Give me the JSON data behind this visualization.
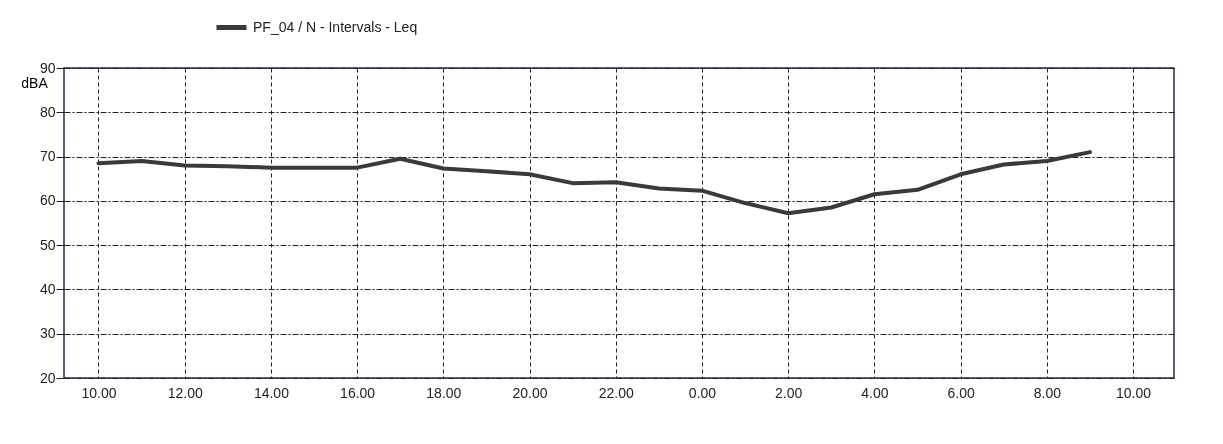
{
  "chart_data": {
    "type": "line",
    "ylabel": "dBA",
    "x": [
      "2000-01-01T10:00",
      "2000-01-01T11:00",
      "2000-01-01T12:00",
      "2000-01-01T13:00",
      "2000-01-01T14:00",
      "2000-01-01T15:00",
      "2000-01-01T16:00",
      "2000-01-01T17:00",
      "2000-01-01T18:00",
      "2000-01-01T19:00",
      "2000-01-01T20:00",
      "2000-01-01T21:00",
      "2000-01-01T22:00",
      "2000-01-01T23:00",
      "2000-01-02T00:00",
      "2000-01-02T01:00",
      "2000-01-02T02:00",
      "2000-01-02T03:00",
      "2000-01-02T04:00",
      "2000-01-02T05:00",
      "2000-01-02T06:00",
      "2000-01-02T07:00",
      "2000-01-02T08:00",
      "2000-01-02T09:00"
    ],
    "series": [
      {
        "name": "PF_04 / N - Intervals - Leq",
        "color": "#3a3a3a",
        "values": [
          68.5,
          69,
          68,
          67.8,
          67.5,
          67.5,
          67.5,
          69.5,
          67.3,
          66.7,
          66,
          64,
          64.2,
          62.8,
          62.3,
          59.5,
          57.2,
          58.5,
          61.5,
          62.5,
          66,
          68.2,
          69,
          71
        ]
      }
    ],
    "xlim": [
      "2000-01-01T09:12",
      "2000-01-02T10:57"
    ],
    "xticks": [
      {
        "value": "2000-01-01T10:00",
        "label": "10.00"
      },
      {
        "value": "2000-01-01T12:00",
        "label": "12.00"
      },
      {
        "value": "2000-01-01T14:00",
        "label": "14.00"
      },
      {
        "value": "2000-01-01T16:00",
        "label": "16.00"
      },
      {
        "value": "2000-01-01T18:00",
        "label": "18.00"
      },
      {
        "value": "2000-01-01T20:00",
        "label": "20.00"
      },
      {
        "value": "2000-01-01T22:00",
        "label": "22.00"
      },
      {
        "value": "2000-01-02T00:00",
        "label": "0.00"
      },
      {
        "value": "2000-01-02T02:00",
        "label": "2.00"
      },
      {
        "value": "2000-01-02T04:00",
        "label": "4.00"
      },
      {
        "value": "2000-01-02T06:00",
        "label": "6.00"
      },
      {
        "value": "2000-01-02T08:00",
        "label": "8.00"
      },
      {
        "value": "2000-01-02T10:00",
        "label": "10.00"
      }
    ],
    "ylim": [
      20,
      90
    ],
    "yticks": [
      20,
      30,
      40,
      50,
      60,
      70,
      80,
      90
    ],
    "grid": true,
    "legend": "top",
    "line_style": "solid",
    "marker": "none"
  }
}
